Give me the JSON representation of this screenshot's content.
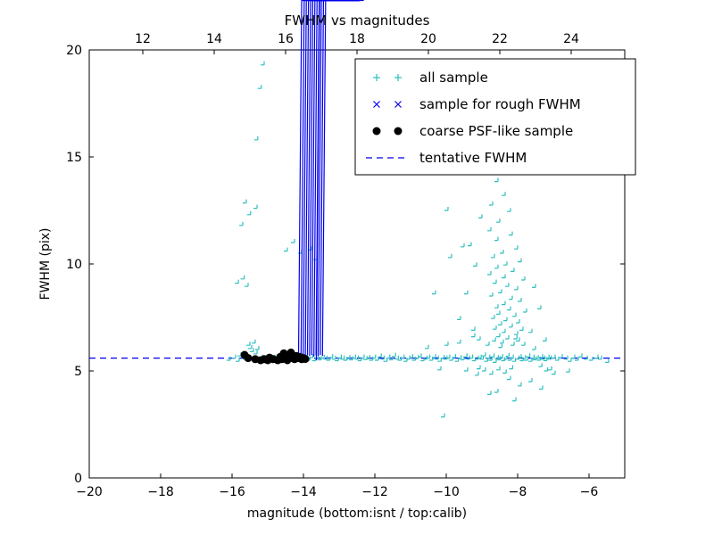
{
  "chart_data": {
    "type": "scatter",
    "title": "FWHM vs magnitudes",
    "xlabel": "magnitude (bottom:isnt / top:calib)",
    "ylabel": "FWHM (pix)",
    "xlim": [
      -20,
      -5
    ],
    "ylim": [
      0,
      20
    ],
    "x_ticks": [
      -20,
      -18,
      -16,
      -14,
      -12,
      -10,
      -8,
      -6
    ],
    "y_ticks": [
      0,
      5,
      10,
      15,
      20
    ],
    "top_axis": {
      "ticks": [
        12,
        14,
        16,
        18,
        20,
        22,
        24
      ],
      "offset_from_bottom": 30.5
    },
    "grid": false,
    "legend_position": "upper right",
    "colors": {
      "all_sample": "#2fbfbf",
      "rough_fwhm": "#0000ee",
      "psf_like": "#000000",
      "tentative": "#0000ee",
      "frame": "#000000"
    },
    "tentative_fwhm": 5.6,
    "legend": [
      {
        "label": "all sample",
        "marker": "plus",
        "color": "#2fbfbf"
      },
      {
        "label": "sample for rough FWHM",
        "marker": "x",
        "color": "#0000ee"
      },
      {
        "label": "coarse PSF-like sample",
        "marker": "dot",
        "color": "#000000"
      },
      {
        "label": "tentative FWHM",
        "marker": "dashline",
        "color": "#0000ee"
      }
    ],
    "series": [
      {
        "name": "all sample",
        "marker": "plus",
        "color": "#2fbfbf",
        "points": [
          [
            -16.05,
            5.5
          ],
          [
            -15.9,
            5.6
          ],
          [
            -15.82,
            9.1
          ],
          [
            -15.8,
            5.45
          ],
          [
            -15.75,
            5.7
          ],
          [
            -15.7,
            11.8
          ],
          [
            -15.66,
            9.3
          ],
          [
            -15.6,
            12.85
          ],
          [
            -15.6,
            5.55
          ],
          [
            -15.55,
            8.95
          ],
          [
            -15.5,
            6.2
          ],
          [
            -15.48,
            12.3
          ],
          [
            -15.45,
            6.05
          ],
          [
            -15.4,
            5.9
          ],
          [
            -15.35,
            6.3
          ],
          [
            -15.3,
            12.6
          ],
          [
            -15.3,
            5.8
          ],
          [
            -15.28,
            15.8
          ],
          [
            -15.25,
            6.0
          ],
          [
            -15.18,
            18.2
          ],
          [
            -15.15,
            5.6
          ],
          [
            -15.1,
            19.3
          ],
          [
            -15.05,
            5.5
          ],
          [
            -14.9,
            5.55
          ],
          [
            -14.8,
            5.6
          ],
          [
            -14.7,
            5.5
          ],
          [
            -14.6,
            5.55
          ],
          [
            -14.5,
            5.6
          ],
          [
            -14.45,
            10.6
          ],
          [
            -14.4,
            5.5
          ],
          [
            -14.3,
            5.55
          ],
          [
            -14.25,
            11.0
          ],
          [
            -14.2,
            5.6
          ],
          [
            -14.1,
            5.5
          ],
          [
            -14.05,
            10.5
          ],
          [
            -13.98,
            5.55
          ],
          [
            -13.9,
            5.6
          ],
          [
            -13.82,
            5.5
          ],
          [
            -13.78,
            10.65
          ],
          [
            -13.74,
            5.62
          ],
          [
            -13.66,
            5.48
          ],
          [
            -13.62,
            10.2
          ],
          [
            -13.58,
            5.58
          ],
          [
            -13.5,
            5.52
          ],
          [
            -13.42,
            5.6
          ],
          [
            -13.34,
            5.55
          ],
          [
            -13.26,
            5.5
          ],
          [
            -13.18,
            5.62
          ],
          [
            -13.1,
            5.55
          ],
          [
            -13.02,
            5.48
          ],
          [
            -12.94,
            5.6
          ],
          [
            -12.86,
            5.55
          ],
          [
            -12.78,
            5.5
          ],
          [
            -12.7,
            5.58
          ],
          [
            -12.62,
            5.52
          ],
          [
            -12.54,
            5.6
          ],
          [
            -12.46,
            5.55
          ],
          [
            -12.38,
            5.48
          ],
          [
            -12.3,
            5.6
          ],
          [
            -12.22,
            5.53
          ],
          [
            -12.14,
            5.58
          ],
          [
            -12.06,
            5.5
          ],
          [
            -11.98,
            5.6
          ],
          [
            -11.9,
            5.5
          ],
          [
            -11.82,
            5.65
          ],
          [
            -11.74,
            5.55
          ],
          [
            -11.66,
            5.45
          ],
          [
            -11.58,
            5.6
          ],
          [
            -11.5,
            5.52
          ],
          [
            -11.42,
            5.68
          ],
          [
            -11.34,
            5.55
          ],
          [
            -11.26,
            5.5
          ],
          [
            -11.18,
            5.6
          ],
          [
            -11.1,
            5.45
          ],
          [
            -11.02,
            5.55
          ],
          [
            -10.94,
            5.62
          ],
          [
            -10.86,
            5.5
          ],
          [
            -10.78,
            5.58
          ],
          [
            -10.7,
            5.65
          ],
          [
            -10.62,
            5.48
          ],
          [
            -10.54,
            5.55
          ],
          [
            -10.5,
            6.05
          ],
          [
            -10.46,
            5.6
          ],
          [
            -10.38,
            5.5
          ],
          [
            -10.3,
            8.6
          ],
          [
            -10.3,
            5.62
          ],
          [
            -10.22,
            5.55
          ],
          [
            -10.15,
            5.05
          ],
          [
            -10.14,
            5.45
          ],
          [
            -10.06,
            5.58
          ],
          [
            -10.05,
            2.85
          ],
          [
            -9.98,
            5.55
          ],
          [
            -9.95,
            12.5
          ],
          [
            -9.95,
            6.2
          ],
          [
            -9.9,
            5.6
          ],
          [
            -9.85,
            10.3
          ],
          [
            -9.82,
            5.5
          ],
          [
            -9.74,
            5.62
          ],
          [
            -9.66,
            5.45
          ],
          [
            -9.6,
            7.4
          ],
          [
            -9.6,
            6.3
          ],
          [
            -9.58,
            5.58
          ],
          [
            -9.5,
            10.8
          ],
          [
            -9.5,
            5.52
          ],
          [
            -9.42,
            5.65
          ],
          [
            -9.4,
            8.6
          ],
          [
            -9.4,
            5.0
          ],
          [
            -9.34,
            5.55
          ],
          [
            -9.3,
            10.85
          ],
          [
            -9.26,
            5.6
          ],
          [
            -9.2,
            6.9
          ],
          [
            -9.2,
            6.6
          ],
          [
            -9.18,
            5.48
          ],
          [
            -9.15,
            9.9
          ],
          [
            -9.1,
            5.55
          ],
          [
            -9.1,
            4.8
          ],
          [
            -9.05,
            6.45
          ],
          [
            -9.05,
            5.1
          ],
          [
            -9.02,
            5.6
          ],
          [
            -9.0,
            12.15
          ],
          [
            -8.96,
            5.55
          ],
          [
            -8.9,
            5.7
          ],
          [
            -8.9,
            5.0
          ],
          [
            -8.84,
            5.45
          ],
          [
            -8.8,
            6.2
          ],
          [
            -8.78,
            5.6
          ],
          [
            -8.75,
            11.55
          ],
          [
            -8.75,
            9.5
          ],
          [
            -8.75,
            3.9
          ],
          [
            -8.72,
            5.5
          ],
          [
            -8.7,
            12.75
          ],
          [
            -8.7,
            8.5
          ],
          [
            -8.7,
            4.85
          ],
          [
            -8.66,
            5.65
          ],
          [
            -8.65,
            10.3
          ],
          [
            -8.65,
            7.45
          ],
          [
            -8.62,
            6.4
          ],
          [
            -8.6,
            9.1
          ],
          [
            -8.6,
            6.95
          ],
          [
            -8.6,
            5.4
          ],
          [
            -8.55,
            13.85
          ],
          [
            -8.55,
            11.1
          ],
          [
            -8.55,
            9.8
          ],
          [
            -8.55,
            7.95
          ],
          [
            -8.55,
            4.0
          ],
          [
            -8.54,
            5.58
          ],
          [
            -8.5,
            11.95
          ],
          [
            -8.5,
            7.65
          ],
          [
            -8.5,
            6.6
          ],
          [
            -8.5,
            5.05
          ],
          [
            -8.48,
            5.52
          ],
          [
            -8.45,
            14.55
          ],
          [
            -8.45,
            8.65
          ],
          [
            -8.45,
            7.15
          ],
          [
            -8.44,
            6.1
          ],
          [
            -8.42,
            5.62
          ],
          [
            -8.4,
            10.5
          ],
          [
            -8.4,
            6.3
          ],
          [
            -8.36,
            5.48
          ],
          [
            -8.35,
            13.2
          ],
          [
            -8.35,
            9.35
          ],
          [
            -8.35,
            8.1
          ],
          [
            -8.35,
            6.8
          ],
          [
            -8.32,
            4.9
          ],
          [
            -8.3,
            9.95
          ],
          [
            -8.3,
            7.35
          ],
          [
            -8.3,
            5.55
          ],
          [
            -8.25,
            8.95
          ],
          [
            -8.25,
            6.5
          ],
          [
            -8.24,
            5.68
          ],
          [
            -8.2,
            12.45
          ],
          [
            -8.2,
            7.85
          ],
          [
            -8.2,
            4.6
          ],
          [
            -8.18,
            5.5
          ],
          [
            -8.15,
            11.35
          ],
          [
            -8.15,
            8.35
          ],
          [
            -8.15,
            7.05
          ],
          [
            -8.14,
            5.1
          ],
          [
            -8.12,
            5.6
          ],
          [
            -8.1,
            9.65
          ],
          [
            -8.1,
            6.2
          ],
          [
            -8.06,
            5.45
          ],
          [
            -8.05,
            7.55
          ],
          [
            -8.05,
            3.6
          ],
          [
            -8.02,
            6.5
          ],
          [
            -8.0,
            10.7
          ],
          [
            -8.0,
            8.8
          ],
          [
            -8.0,
            6.7
          ],
          [
            -7.96,
            5.55
          ],
          [
            -7.95,
            7.25
          ],
          [
            -7.95,
            6.4
          ],
          [
            -7.9,
            10.1
          ],
          [
            -7.9,
            8.25
          ],
          [
            -7.9,
            5.62
          ],
          [
            -7.9,
            4.3
          ],
          [
            -7.85,
            6.9
          ],
          [
            -7.84,
            5.48
          ],
          [
            -7.8,
            9.25
          ],
          [
            -7.8,
            6.2
          ],
          [
            -7.78,
            5.58
          ],
          [
            -7.75,
            7.75
          ],
          [
            -7.72,
            5.5
          ],
          [
            -7.66,
            5.65
          ],
          [
            -7.6,
            6.8
          ],
          [
            -7.6,
            5.45
          ],
          [
            -7.6,
            4.5
          ],
          [
            -7.54,
            5.6
          ],
          [
            -7.5,
            8.9
          ],
          [
            -7.5,
            6.0
          ],
          [
            -7.48,
            5.52
          ],
          [
            -7.42,
            5.58
          ],
          [
            -7.36,
            5.5
          ],
          [
            -7.35,
            7.9
          ],
          [
            -7.32,
            5.2
          ],
          [
            -7.3,
            5.62
          ],
          [
            -7.3,
            4.15
          ],
          [
            -7.24,
            5.55
          ],
          [
            -7.2,
            6.4
          ],
          [
            -7.18,
            5.48
          ],
          [
            -7.16,
            5.0
          ],
          [
            -7.12,
            5.6
          ],
          [
            -7.06,
            5.55
          ],
          [
            -7.05,
            5.05
          ],
          [
            -6.95,
            5.6
          ],
          [
            -6.95,
            4.85
          ],
          [
            -6.85,
            5.5
          ],
          [
            -6.75,
            5.62
          ],
          [
            -6.6,
            5.55
          ],
          [
            -6.55,
            4.95
          ],
          [
            -6.5,
            5.45
          ],
          [
            -6.4,
            5.6
          ],
          [
            -6.3,
            5.5
          ],
          [
            -6.2,
            5.65
          ],
          [
            -6.05,
            5.55
          ],
          [
            -5.9,
            5.5
          ],
          [
            -5.75,
            5.6
          ],
          [
            -5.65,
            5.55
          ],
          [
            -5.45,
            5.4
          ]
        ]
      },
      {
        "name": "sample for rough FWHM",
        "marker": "x",
        "color": "#0000ee",
        "points": [
          [
            -14.05,
            5.58
          ],
          [
            -13.98,
            5.55
          ],
          [
            -13.92,
            5.6
          ],
          [
            -13.86,
            5.55
          ],
          [
            -13.8,
            5.58
          ],
          [
            -13.74,
            5.55
          ],
          [
            -13.68,
            5.6
          ],
          [
            -13.62,
            5.52
          ],
          [
            -13.56,
            5.58
          ],
          [
            -13.55,
            5.35
          ],
          [
            -13.5,
            5.55
          ],
          [
            -13.44,
            5.6
          ],
          [
            -13.38,
            5.55
          ]
        ]
      },
      {
        "name": "coarse PSF-like sample",
        "marker": "dot",
        "color": "#000000",
        "points": [
          [
            -15.65,
            5.75
          ],
          [
            -15.55,
            5.6
          ],
          [
            -15.35,
            5.55
          ],
          [
            -15.2,
            5.5
          ],
          [
            -15.1,
            5.55
          ],
          [
            -15.0,
            5.5
          ],
          [
            -14.95,
            5.62
          ],
          [
            -14.85,
            5.55
          ],
          [
            -14.72,
            5.5
          ],
          [
            -14.65,
            5.66
          ],
          [
            -14.6,
            5.55
          ],
          [
            -14.55,
            5.82
          ],
          [
            -14.5,
            5.6
          ],
          [
            -14.45,
            5.5
          ],
          [
            -14.4,
            5.72
          ],
          [
            -14.35,
            5.86
          ],
          [
            -14.3,
            5.6
          ],
          [
            -14.25,
            5.55
          ],
          [
            -14.2,
            5.7
          ],
          [
            -14.15,
            5.6
          ],
          [
            -14.1,
            5.66
          ],
          [
            -14.05,
            5.55
          ],
          [
            -14.0,
            5.6
          ],
          [
            -13.95,
            5.56
          ]
        ]
      },
      {
        "name": "tentative FWHM",
        "marker": "dashline",
        "color": "#0000ee",
        "type": "hline",
        "y": 5.6
      }
    ]
  }
}
